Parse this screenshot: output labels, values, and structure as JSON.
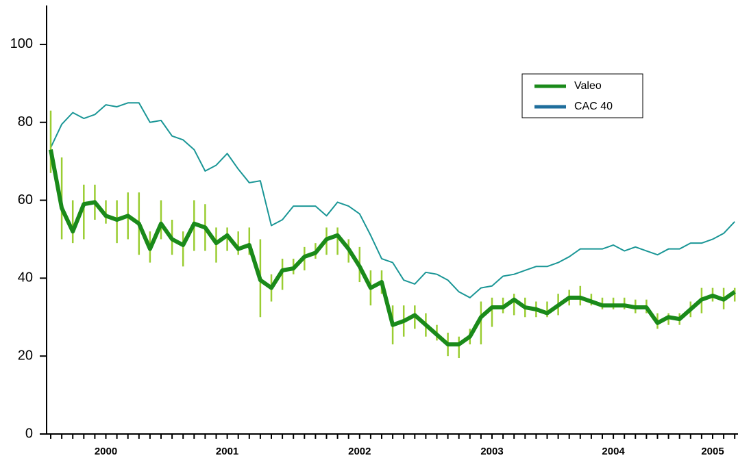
{
  "chart_data": {
    "type": "line",
    "categories": [
      null,
      null,
      null,
      null,
      null,
      "2000",
      null,
      null,
      null,
      null,
      null,
      null,
      null,
      null,
      null,
      null,
      "2001",
      null,
      null,
      null,
      null,
      null,
      null,
      null,
      null,
      null,
      null,
      null,
      "2002",
      null,
      null,
      null,
      null,
      null,
      null,
      null,
      null,
      null,
      null,
      null,
      "2003",
      null,
      null,
      null,
      null,
      null,
      null,
      null,
      null,
      null,
      null,
      "2004",
      null,
      null,
      null,
      null,
      null,
      null,
      null,
      null,
      "2005",
      null,
      null
    ],
    "series": [
      {
        "name": "Valeo",
        "color": "#1a8a1a",
        "bar_color": "#9acd32",
        "values": [
          73,
          58,
          52,
          59,
          59.5,
          56,
          55,
          56,
          54,
          47.5,
          54,
          50,
          48.5,
          54,
          53,
          49,
          51,
          47.5,
          48.5,
          39.5,
          37.5,
          42,
          42.5,
          45.5,
          46.5,
          50,
          51,
          47.5,
          43,
          37.5,
          39,
          28,
          29,
          30.5,
          28,
          25.5,
          23,
          23,
          25,
          30,
          32.5,
          32.5,
          34.5,
          32.5,
          32,
          31,
          33,
          35,
          35,
          34,
          33,
          33,
          33,
          32.5,
          32.5,
          28.5,
          30,
          29.5,
          32,
          34.5,
          35.5,
          34.5,
          36.5
        ],
        "high": [
          83,
          71,
          60,
          64,
          64,
          60,
          60,
          62,
          62,
          52,
          60,
          55,
          52,
          60,
          59,
          53,
          53,
          52,
          53,
          50,
          41,
          45,
          45,
          48,
          49,
          53,
          53,
          50,
          48,
          42,
          42,
          33,
          33,
          33,
          31,
          28,
          26,
          25,
          27,
          34,
          35,
          35,
          36,
          35,
          34,
          34,
          36,
          37,
          38,
          36,
          35,
          35,
          35,
          34.5,
          34.5,
          31,
          31,
          31,
          34,
          37.5,
          37.5,
          37.5,
          37.5
        ],
        "low": [
          67,
          50,
          49,
          50,
          55,
          54,
          49,
          50,
          46,
          44,
          50,
          46,
          43,
          47,
          47,
          44,
          47,
          46,
          46,
          30,
          34,
          37,
          41,
          42,
          45,
          46,
          46,
          44,
          39,
          33,
          36,
          23,
          25,
          27,
          25,
          24,
          20,
          19.5,
          23,
          23,
          27.5,
          31,
          30.5,
          30,
          30,
          30,
          30.5,
          33,
          33,
          33,
          32,
          32,
          32,
          31,
          31,
          27,
          28,
          28,
          30,
          31,
          34,
          32,
          34
        ]
      },
      {
        "name": "CAC 40",
        "color": "#1a9696",
        "legend_color": "#1f6e9c",
        "values": [
          73.5,
          79.5,
          82.5,
          81,
          82,
          84.5,
          84,
          85,
          85,
          80,
          80.5,
          76.5,
          75.5,
          73,
          67.5,
          69,
          72,
          68,
          64.5,
          65,
          53.5,
          55,
          58.5,
          58.5,
          58.5,
          56,
          59.5,
          58.5,
          56.5,
          51,
          45,
          44,
          39.5,
          38.5,
          41.5,
          41,
          39.5,
          36.5,
          35,
          37.5,
          38,
          40.5,
          41,
          42,
          43,
          43,
          44,
          45.5,
          47.5,
          47.5,
          47.5,
          48.5,
          47,
          48,
          47,
          46,
          47.5,
          47.5,
          49,
          49,
          50,
          51.5,
          54.5
        ]
      }
    ],
    "ylim": [
      0,
      110
    ],
    "yticks": [
      0,
      20,
      40,
      60,
      80,
      100
    ],
    "legend": "upper right",
    "grid": false
  }
}
